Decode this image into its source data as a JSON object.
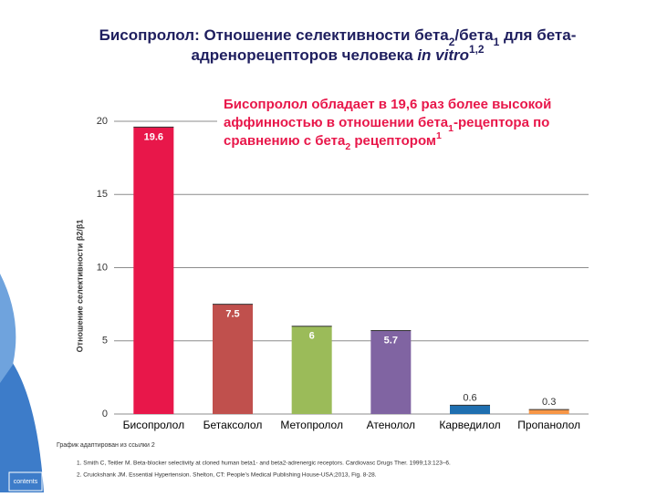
{
  "chart_data": {
    "type": "bar",
    "title": [
      [
        {
          "text": "Бисопролол: Отношение селективности бета"
        },
        {
          "text": "2",
          "shift": "sub"
        },
        {
          "text": "/бета"
        },
        {
          "text": "1",
          "shift": "sub"
        },
        {
          "text": " для бета-"
        }
      ],
      [
        {
          "text": "адренорецепторов человека "
        },
        {
          "text": "in vitro",
          "italic": true
        },
        {
          "text": "1,2",
          "shift": "sup"
        }
      ]
    ],
    "annotation": [
      [
        {
          "text": "Бисопролол обладает в 19,6 раз более высокой"
        }
      ],
      [
        {
          "text": "аффинностью в отношении бета"
        },
        {
          "text": "1",
          "shift": "sub"
        },
        {
          "text": "-рецептора по"
        }
      ],
      [
        {
          "text": "сравнению с бета"
        },
        {
          "text": "2",
          "shift": "sub"
        },
        {
          "text": " рецептором"
        },
        {
          "text": "1",
          "shift": "sup"
        }
      ]
    ],
    "y_label": "Отношение селективности β2/β1",
    "categories": [
      "Бисопролол",
      "Бетаксолол",
      "Метопролол",
      "Атенолол",
      "Карведилол",
      "Пропанолол"
    ],
    "values": [
      19.6,
      7.5,
      6,
      5.7,
      0.6,
      0.3
    ],
    "colors": [
      "#e8174a",
      "#c0504d",
      "#9bbb59",
      "#8064a2",
      "#1f6fb0",
      "#f79646"
    ],
    "ylim": [
      0,
      20
    ],
    "yticks": [
      0,
      5,
      10,
      15,
      20
    ],
    "grid": true,
    "note": "График адаптирован из ссылки 2",
    "references": [
      "1. Smith C, Teitler M. Beta-blocker selectivity at cloned human beta1- and beta2-adrenergic receptors. Cardiovasc Drugs Ther. 1999;13:123–6.",
      "2. Cruickshank JM. Essential Hypertension. Shelton, CT: People's Medical Publishing House-USA;2013, Fig. 8-28."
    ],
    "button": "contents"
  }
}
